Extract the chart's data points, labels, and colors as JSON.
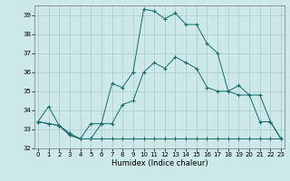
{
  "xlabel": "Humidex (Indice chaleur)",
  "background_color": "#cce8e8",
  "grid_color": "#aacccc",
  "line_color": "#1a6b6b",
  "xlim": [
    0,
    23
  ],
  "ylim": [
    32,
    39.5
  ],
  "yticks": [
    32,
    33,
    34,
    35,
    36,
    37,
    38,
    39
  ],
  "xticks": [
    0,
    1,
    2,
    3,
    4,
    5,
    6,
    7,
    8,
    9,
    10,
    11,
    12,
    13,
    14,
    15,
    16,
    17,
    18,
    19,
    20,
    21,
    22,
    23
  ],
  "line1_y": [
    33.4,
    34.2,
    33.2,
    32.8,
    32.5,
    33.3,
    33.3,
    35.4,
    35.2,
    36.0,
    39.3,
    39.2,
    38.8,
    39.1,
    38.5,
    38.5,
    37.5,
    37.0,
    35.0,
    34.8,
    34.8,
    33.4,
    33.4,
    32.5
  ],
  "line2_y": [
    33.4,
    33.3,
    33.2,
    32.7,
    32.5,
    32.5,
    33.3,
    33.3,
    34.3,
    34.5,
    36.0,
    36.5,
    36.2,
    36.8,
    36.5,
    36.2,
    35.2,
    35.0,
    35.0,
    35.3,
    34.8,
    34.8,
    33.4,
    32.5
  ],
  "line3_y": [
    33.4,
    33.3,
    33.2,
    32.7,
    32.5,
    32.5,
    32.5,
    32.5,
    32.5,
    32.5,
    32.5,
    32.5,
    32.5,
    32.5,
    32.5,
    32.5,
    32.5,
    32.5,
    32.5,
    32.5,
    32.5,
    32.5,
    32.5,
    32.5
  ]
}
